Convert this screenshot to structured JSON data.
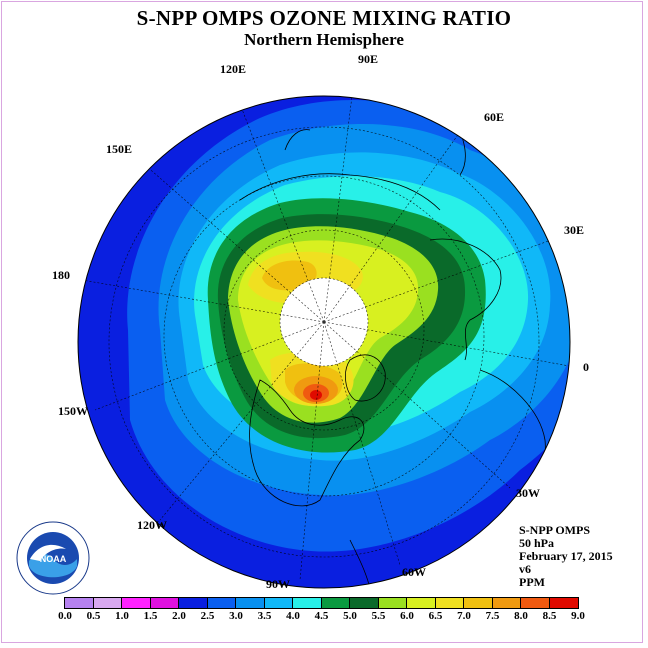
{
  "header": {
    "title": "S-NPP OMPS OZONE MIXING RATIO",
    "subtitle": "Northern Hemisphere"
  },
  "longitude_labels": [
    "90E",
    "60E",
    "30E",
    "0",
    "30W",
    "60W",
    "90W",
    "120W",
    "150W",
    "180",
    "150E",
    "120E"
  ],
  "info": {
    "line1": "S-NPP OMPS",
    "line2": "50 hPa",
    "line3": "February 17, 2015",
    "line4": "v6",
    "line5": "PPM"
  },
  "logo": {
    "text": "NOAA",
    "ring_text": "NATIONAL OCEANIC AND ATMOSPHERIC ADMINISTRATION · U.S. DEPARTMENT OF COMMERCE"
  },
  "colorbar": {
    "ticks": [
      "0.0",
      "0.5",
      "1.0",
      "1.5",
      "2.0",
      "2.5",
      "3.0",
      "3.5",
      "4.0",
      "4.5",
      "5.0",
      "5.5",
      "6.0",
      "6.5",
      "7.0",
      "7.5",
      "8.0",
      "8.5",
      "9.0"
    ],
    "colors": [
      "#b682f0",
      "#d8a8f0",
      "#ff22ff",
      "#e011e0",
      "#0a1fe0",
      "#0a5ff0",
      "#0890f0",
      "#10b8f8",
      "#28f0e8",
      "#0a9a40",
      "#0a6a2a",
      "#9ae020",
      "#d8f020",
      "#f0e020",
      "#f0c010",
      "#f09a10",
      "#f05a10",
      "#e00a00",
      "#8a4a2a"
    ]
  },
  "colors": {
    "ocean_outer": "#0a1fe0",
    "band_2_5": "#0a5ff0",
    "band_3_0": "#0890f0",
    "band_3_5": "#10b8f8",
    "band_4_0": "#28f0e8",
    "band_4_5": "#0a9a40",
    "band_5_0": "#0a6a2a",
    "band_5_5": "#9ae020",
    "band_6_0": "#d8f020",
    "band_6_5": "#f0e020",
    "band_7_0": "#f0c010",
    "band_7_5": "#f09a10",
    "band_8_0": "#f05a10",
    "band_8_5": "#e00a00",
    "no_data": "#ffffff"
  }
}
